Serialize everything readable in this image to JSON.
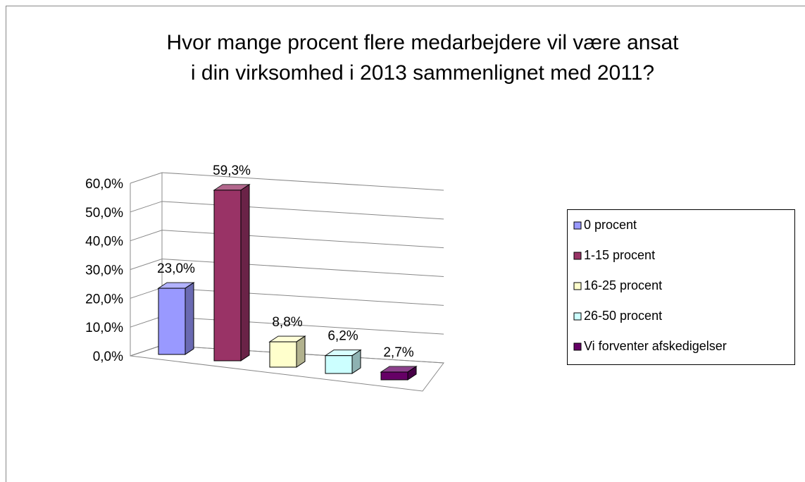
{
  "chart_data": {
    "type": "bar3d",
    "title": [
      "Hvor mange procent flere medarbejdere vil være ansat",
      "i din virksomhed i 2013 sammenlignet med 2011?"
    ],
    "categories": [
      "0 procent",
      "1-15 procent",
      "16-25 procent",
      "26-50 procent",
      "Vi forventer afskedigelser"
    ],
    "values": [
      23.0,
      59.3,
      8.8,
      6.2,
      2.7
    ],
    "value_labels": [
      "23,0%",
      "59,3%",
      "8,8%",
      "6,2%",
      "2,7%"
    ],
    "colors": [
      "#9999ff",
      "#993366",
      "#ffffcc",
      "#ccffff",
      "#660066"
    ],
    "ylim": [
      0,
      60
    ],
    "yticks": [
      {
        "value": 0,
        "label": "0,0%"
      },
      {
        "value": 10,
        "label": "10,0%"
      },
      {
        "value": 20,
        "label": "20,0%"
      },
      {
        "value": 30,
        "label": "30,0%"
      },
      {
        "value": 40,
        "label": "40,0%"
      },
      {
        "value": 50,
        "label": "50,0%"
      },
      {
        "value": 60,
        "label": "60,0%"
      }
    ],
    "grid": true,
    "legend": "right"
  }
}
